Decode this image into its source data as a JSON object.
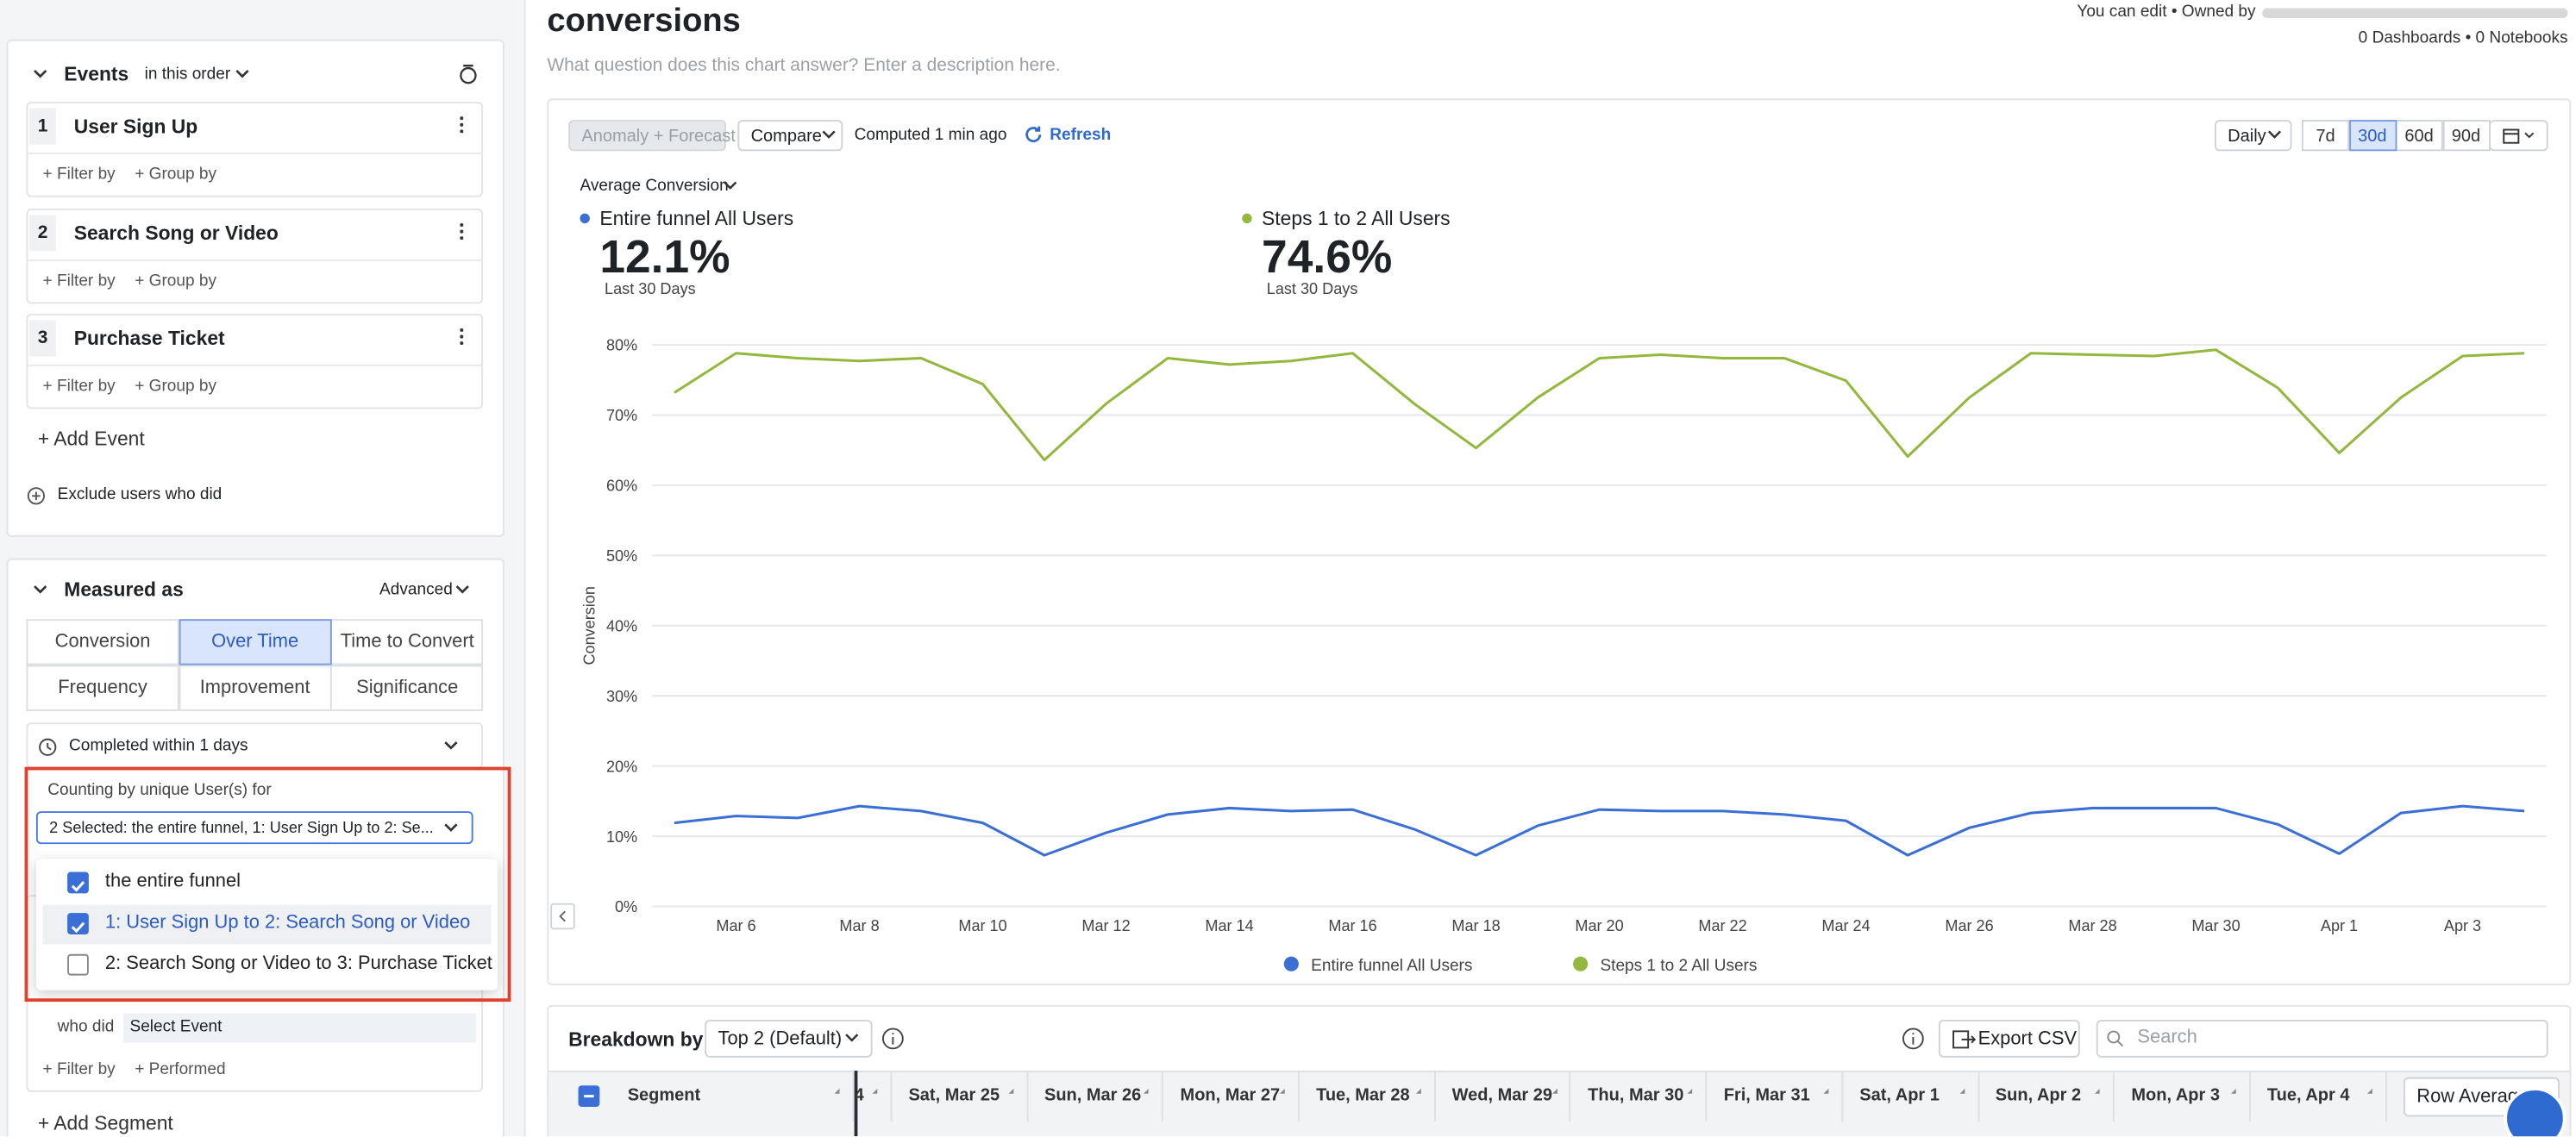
{
  "header": {
    "title": "conversions",
    "description": "What question does this chart answer? Enter a description here.",
    "access": "You can edit • Owned by",
    "counts": "0 Dashboards • 0 Notebooks"
  },
  "sidebar": {
    "events_header": "Events",
    "order": "in this order",
    "events": [
      {
        "num": "1",
        "name": "User Sign Up"
      },
      {
        "num": "2",
        "name": "Search Song or Video"
      },
      {
        "num": "3",
        "name": "Purchase Ticket"
      }
    ],
    "filter_by": "+ Filter by",
    "group_by": "+ Group by",
    "add_event": "+ Add Event",
    "exclude": "Exclude users who did",
    "measured_as": "Measured as",
    "advanced": "Advanced",
    "modes": [
      {
        "label": "Conversion",
        "selected": false
      },
      {
        "label": "Over Time",
        "selected": true
      },
      {
        "label": "Time to Convert",
        "selected": false
      },
      {
        "label": "Frequency",
        "selected": false
      },
      {
        "label": "Improvement",
        "selected": false
      },
      {
        "label": "Significance",
        "selected": false
      }
    ],
    "completed_within": "Completed within 1 days",
    "counting_by": "Counting by unique User(s) for",
    "selected": "2 Selected: the entire funnel, 1: User Sign Up to 2: Se...",
    "options": [
      {
        "label": "the entire funnel",
        "checked": true,
        "highlighted": false
      },
      {
        "label": "1: User Sign Up to 2: Search Song or Video",
        "checked": true,
        "highlighted": true
      },
      {
        "label": "2: Search Song or Video to 3: Purchase Ticket",
        "checked": false,
        "highlighted": false
      }
    ],
    "who_did": "who did",
    "select_event": "Select Event",
    "performed": "+ Performed",
    "add_segment": "+ Add Segment"
  },
  "toolbar": {
    "anomaly": "Anomaly + Forecast",
    "compare": "Compare",
    "computed": "Computed 1 min ago",
    "refresh": "Refresh",
    "interval": "Daily",
    "ranges": [
      {
        "label": "7d",
        "selected": false
      },
      {
        "label": "30d",
        "selected": true
      },
      {
        "label": "60d",
        "selected": false
      },
      {
        "label": "90d",
        "selected": false
      }
    ]
  },
  "summary": {
    "label": "Average Conversion",
    "items": [
      {
        "value": "12.1%",
        "period": "Last 30 Days"
      },
      {
        "value": "74.6%",
        "period": "Last 30 Days"
      }
    ]
  },
  "chart_data": {
    "type": "line",
    "ylabel": "Conversion",
    "categories": [
      null,
      "Mar 6",
      null,
      "Mar 8",
      null,
      "Mar 10",
      null,
      "Mar 12",
      null,
      "Mar 14",
      null,
      "Mar 16",
      null,
      "Mar 18",
      null,
      "Mar 20",
      null,
      "Mar 22",
      null,
      "Mar 24",
      null,
      "Mar 26",
      null,
      "Mar 28",
      null,
      "Mar 30",
      null,
      "Apr 1",
      null,
      "Apr 3",
      null
    ],
    "series": [
      {
        "name": "Entire funnel All Users",
        "color": "#3b6fd4",
        "values": [
          11.9,
          12.9,
          12.6,
          14.3,
          13.6,
          11.9,
          7.3,
          10.5,
          13.1,
          14.0,
          13.6,
          13.8,
          11.0,
          7.3,
          11.5,
          13.8,
          13.6,
          13.6,
          13.1,
          12.2,
          7.3,
          11.2,
          13.3,
          14.0,
          14.0,
          14.0,
          11.7,
          7.5,
          13.3,
          14.3,
          13.6
        ]
      },
      {
        "name": "Steps 1 to 2 All Users",
        "color": "#94b83e",
        "values": [
          73.2,
          78.8,
          78.1,
          77.7,
          78.1,
          74.4,
          63.6,
          71.6,
          78.1,
          77.2,
          77.7,
          78.8,
          71.6,
          65.3,
          72.5,
          78.1,
          78.6,
          78.1,
          78.1,
          74.9,
          64.1,
          72.5,
          78.8,
          78.6,
          78.4,
          79.3,
          73.9,
          64.6,
          72.5,
          78.4,
          78.8
        ]
      }
    ],
    "ylim": [
      0,
      80
    ],
    "yticks": [
      {
        "value": 0,
        "label": "0%"
      },
      {
        "value": 10,
        "label": "10%"
      },
      {
        "value": 20,
        "label": "20%"
      },
      {
        "value": 30,
        "label": "30%"
      },
      {
        "value": 40,
        "label": "40%"
      },
      {
        "value": 50,
        "label": "50%"
      },
      {
        "value": 60,
        "label": "60%"
      },
      {
        "value": 70,
        "label": "70%"
      },
      {
        "value": 80,
        "label": "80%"
      }
    ],
    "grid": true,
    "legend": "bottom"
  },
  "breakdown": {
    "label": "Breakdown by:",
    "select": "Top 2 (Default)",
    "export": "Export CSV",
    "search": "Search",
    "columns": [
      "Segment",
      "4",
      "Sat, Mar 25",
      "Sun, Mar 26",
      "Mon, Mar 27",
      "Tue, Mar 28",
      "Wed, Mar 29",
      "Thu, Mar 30",
      "Fri, Mar 31",
      "Sat, Apr 1",
      "Sun, Apr 2",
      "Mon, Apr 3",
      "Tue, Apr 4"
    ],
    "row_average": "Row Average"
  }
}
